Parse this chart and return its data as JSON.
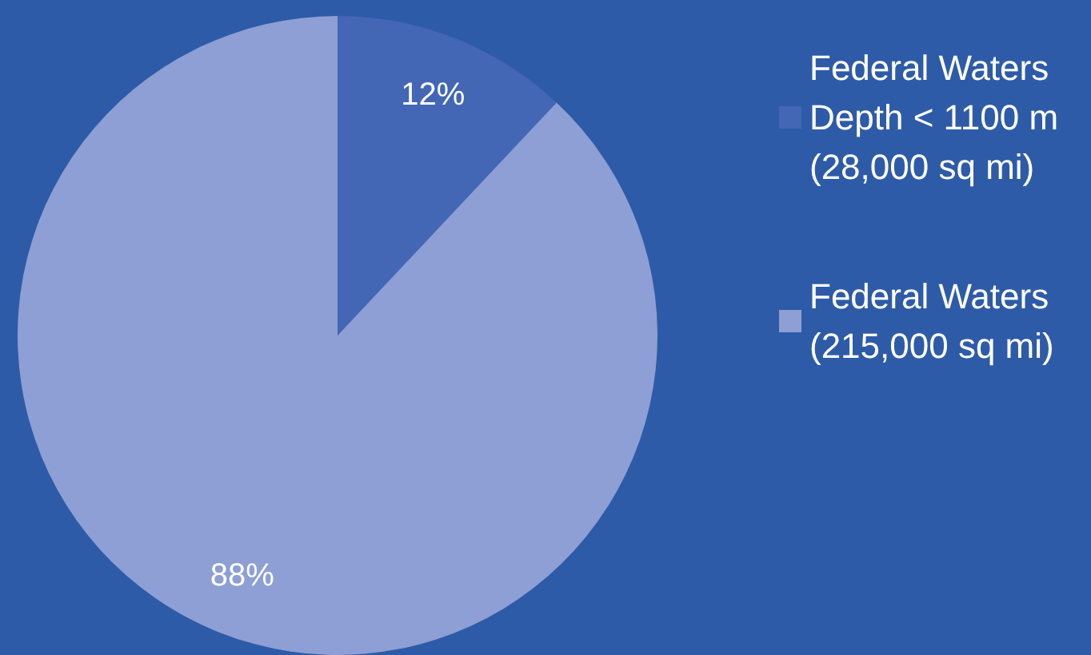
{
  "chart_data": {
    "type": "pie",
    "categories": [
      "Federal Waters Depth < 1100 m (28,000 sq mi)",
      "Federal Waters (215,000 sq mi)"
    ],
    "values": [
      12,
      88
    ],
    "colors": [
      "#4366b5",
      "#8d9fd4"
    ],
    "value_labels": [
      "12%",
      "88%"
    ],
    "legend": "right"
  }
}
